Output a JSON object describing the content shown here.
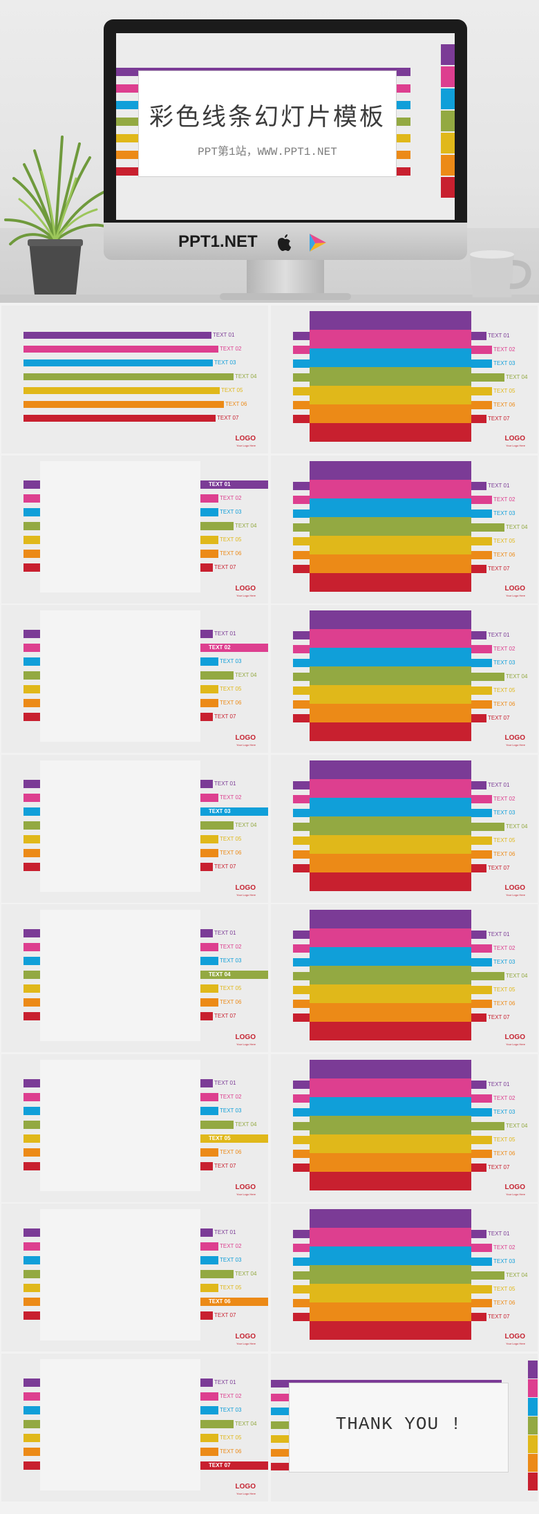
{
  "colors": [
    "#7b3b96",
    "#dd3f8f",
    "#109fd9",
    "#93a942",
    "#e0b81a",
    "#ec8a17",
    "#c8202f"
  ],
  "hero": {
    "title": "彩色线条幻灯片模板",
    "subtitle": "PPT第1站，WWW.PPT1.NET",
    "brand": "PPT1.NET"
  },
  "labels": [
    "TEXT 01",
    "TEXT 02",
    "TEXT 03",
    "TEXT 04",
    "TEXT 05",
    "TEXT 06",
    "TEXT 07"
  ],
  "logo": {
    "text": "LOGO",
    "tagline": "Your Logo Here"
  },
  "slides": [
    {
      "type": "lines"
    },
    {
      "type": "block"
    },
    {
      "type": "photo",
      "active": 0
    },
    {
      "type": "block"
    },
    {
      "type": "photo",
      "active": 1
    },
    {
      "type": "block"
    },
    {
      "type": "photo",
      "active": 2
    },
    {
      "type": "block"
    },
    {
      "type": "photo",
      "active": 3
    },
    {
      "type": "block"
    },
    {
      "type": "photo",
      "active": 4
    },
    {
      "type": "block"
    },
    {
      "type": "photo",
      "active": 5
    },
    {
      "type": "block"
    },
    {
      "type": "photo",
      "active": 6
    },
    {
      "type": "thanks"
    }
  ],
  "thanks": {
    "text": "THANK YOU !"
  }
}
